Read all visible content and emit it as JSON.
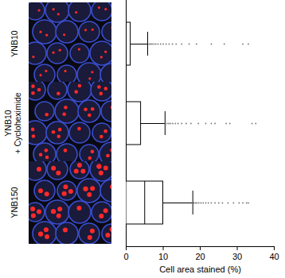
{
  "chart_data": {
    "type": "box",
    "orientation": "horizontal",
    "xlabel": "Cell area stained (%)",
    "xlim": [
      0,
      40
    ],
    "xticks": [
      0,
      10,
      20,
      30,
      40
    ],
    "color": "#000000",
    "categories": [
      "YNB10",
      "YNB10 + Cycloheximide",
      "YNB150"
    ],
    "boxes": [
      {
        "min": 0,
        "q1": 0,
        "median": 0,
        "q3": 1.2,
        "max": 5.8,
        "outliers": [
          6.2,
          6.6,
          7.0,
          7.5,
          8.0,
          8.6,
          9.3,
          10.0,
          10.8,
          11.6,
          12.5,
          13.5,
          15.0,
          17.0,
          19.0,
          23.0,
          26.5,
          31.5,
          33.0
        ]
      },
      {
        "min": 0,
        "q1": 0,
        "median": 0,
        "q3": 4.0,
        "max": 10.5,
        "outliers": [
          11.0,
          11.5,
          12.0,
          12.6,
          13.3,
          14.0,
          15.0,
          16.2,
          17.5,
          19.5,
          21.5,
          23.0,
          24.0,
          27.0,
          28.0,
          34.0,
          35.0
        ]
      },
      {
        "min": 0,
        "q1": 0,
        "median": 5.0,
        "q3": 10.0,
        "max": 18.0,
        "outliers": [
          18.3,
          18.7,
          19.1,
          19.6,
          20.2,
          20.8,
          21.5,
          22.2,
          23.0,
          24.0,
          25.0,
          26.0,
          27.5,
          29.0,
          30.5,
          31.5,
          32.5,
          33.0
        ]
      }
    ]
  }
}
